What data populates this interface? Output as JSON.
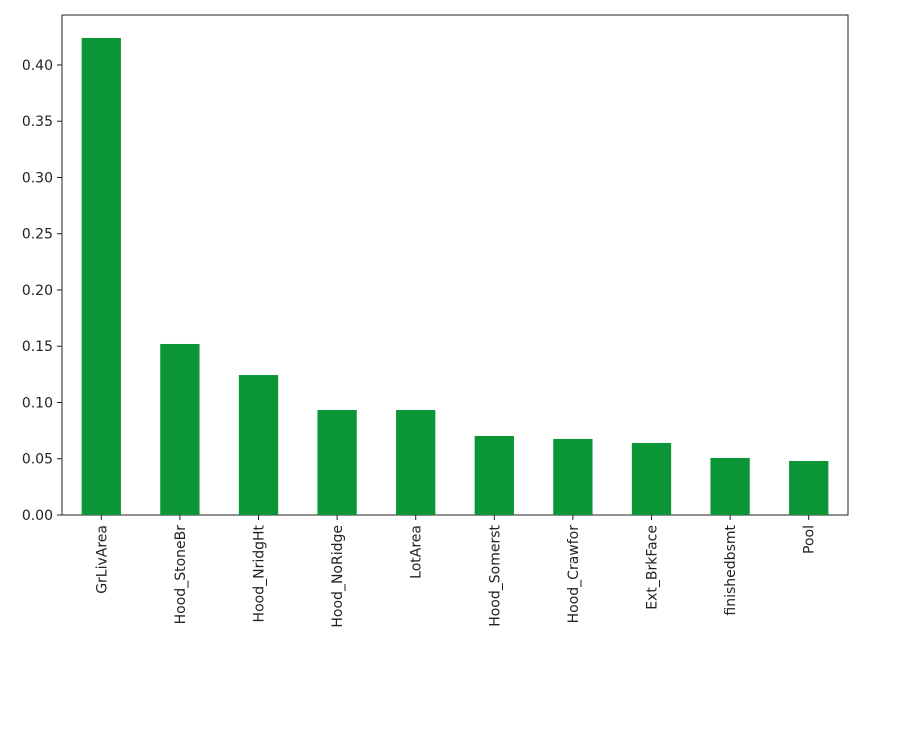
{
  "chart_data": {
    "type": "bar",
    "categories": [
      "GrLivArea",
      "Hood_StoneBr",
      "Hood_NridgHt",
      "Hood_NoRidge",
      "LotArea",
      "Hood_Somerst",
      "Hood_Crawfor",
      "Ext_BrkFace",
      "finishedbsmt",
      "Pool"
    ],
    "values": [
      0.424,
      0.152,
      0.1244,
      0.0933,
      0.0933,
      0.0702,
      0.0676,
      0.064,
      0.0507,
      0.048
    ],
    "color": "#0a9637",
    "ylim": [
      0,
      0.4444
    ],
    "yticks": [
      {
        "value": 0,
        "label": "0.00"
      },
      {
        "value": 0.05,
        "label": "0.05"
      },
      {
        "value": 0.1,
        "label": "0.10"
      },
      {
        "value": 0.15,
        "label": "0.15"
      },
      {
        "value": 0.2,
        "label": "0.20"
      },
      {
        "value": 0.25,
        "label": "0.25"
      },
      {
        "value": 0.3,
        "label": "0.30"
      },
      {
        "value": 0.35,
        "label": "0.35"
      },
      {
        "value": 0.4,
        "label": "0.40"
      }
    ],
    "grid": false
  }
}
